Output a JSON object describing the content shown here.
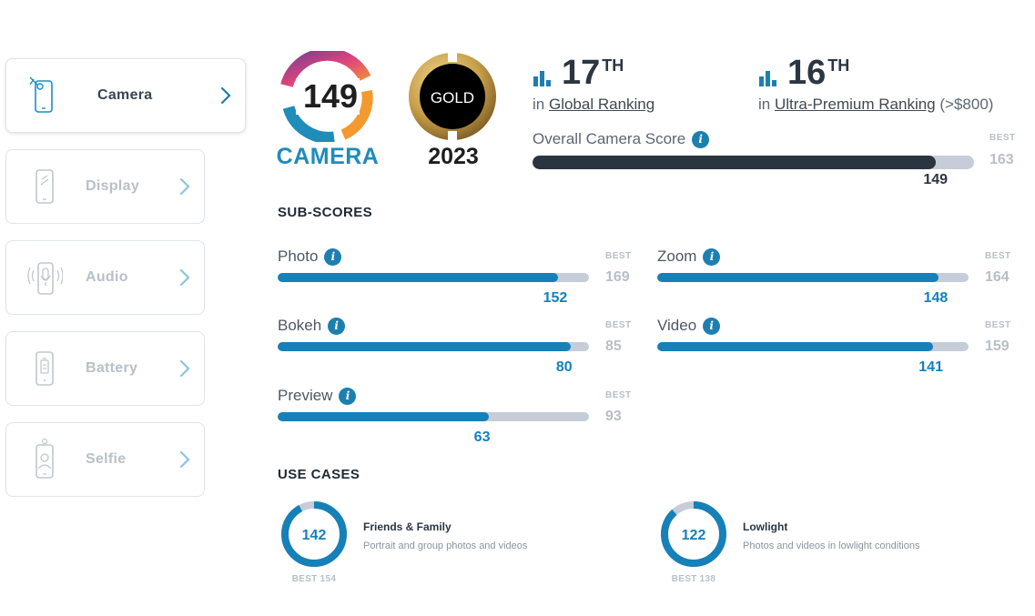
{
  "sidebar": {
    "items": [
      {
        "label": "Camera",
        "icon": "camera-phone-icon",
        "active": true
      },
      {
        "label": "Display",
        "icon": "display-phone-icon",
        "active": false
      },
      {
        "label": "Audio",
        "icon": "audio-phone-icon",
        "active": false
      },
      {
        "label": "Battery",
        "icon": "battery-phone-icon",
        "active": false
      },
      {
        "label": "Selfie",
        "icon": "selfie-phone-icon",
        "active": false
      }
    ]
  },
  "badges": {
    "camera_score": "149",
    "camera_label": "CAMERA",
    "gold_label": "GOLD",
    "year": "2023"
  },
  "rankings": {
    "global": {
      "rank": "17",
      "suffix": "TH",
      "prefix": "in",
      "label": "Global Ranking"
    },
    "ultra": {
      "rank": "16",
      "suffix": "TH",
      "prefix": "in",
      "label": "Ultra-Premium Ranking",
      "note": "(>$800)"
    }
  },
  "overall": {
    "label": "Overall Camera Score",
    "score": 149,
    "best_label": "BEST",
    "best": 163
  },
  "sub_scores": {
    "title": "SUB-SCORES",
    "items": [
      {
        "label": "Photo",
        "score": 152,
        "best": 169
      },
      {
        "label": "Bokeh",
        "score": 80,
        "best": 85
      },
      {
        "label": "Preview",
        "score": 63,
        "best": 93
      },
      {
        "label": "Zoom",
        "score": 148,
        "best": 164
      },
      {
        "label": "Video",
        "score": 141,
        "best": 159
      }
    ],
    "best_label": "BEST"
  },
  "use_cases": {
    "title": "USE CASES",
    "items": [
      {
        "score": 142,
        "best": 154,
        "best_text": "BEST 154",
        "title": "Friends & Family",
        "desc": "Portrait and group photos and videos"
      },
      {
        "score": 122,
        "best": 138,
        "best_text": "BEST 138",
        "title": "Lowlight",
        "desc": "Photos and videos in lowlight conditions"
      }
    ]
  },
  "colors": {
    "accent": "#1680b8",
    "dark_bar": "#2b3540",
    "track": "#c6cdd8",
    "gold": "#c9a04a"
  }
}
